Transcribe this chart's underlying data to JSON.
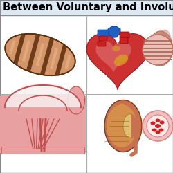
{
  "title": "Between Voluntary and Involunt",
  "title_fontsize": 10.5,
  "title_fontweight": "bold",
  "title_bg": "#dce9f5",
  "bg_color": "#ffffff",
  "border_color": "#888888",
  "divider_color": "#aaaaaa",
  "skeletal_body_color": "#d4956a",
  "skeletal_seg_color": "#7a4020",
  "skeletal_dark_band": "#5a2e0a",
  "skeletal_light": "#e8c090",
  "diaphragm_pink": "#e8a0a0",
  "diaphragm_light": "#f5d0d0",
  "diaphragm_white": "#f8f0f0",
  "diaphragm_fiber": "#c05050",
  "heart_red": "#cc3030",
  "heart_dark": "#aa1010",
  "heart_pink": "#e08080",
  "heart_blue": "#2060c0",
  "heart_yellow": "#d8a020",
  "kidney_outer": "#c87050",
  "kidney_inner": "#d4904a",
  "kidney_pelvis": "#e0c070",
  "kidney_ureter": "#c87050",
  "smooth_outer": "#e8b0b0",
  "smooth_inner": "#d08080",
  "smooth_stripe": "#c06060",
  "vessel_outer": "#f0c0c0",
  "vessel_wall": "#e08080",
  "vessel_lumen": "#fce8e8",
  "vessel_rbc": "#cc2020"
}
